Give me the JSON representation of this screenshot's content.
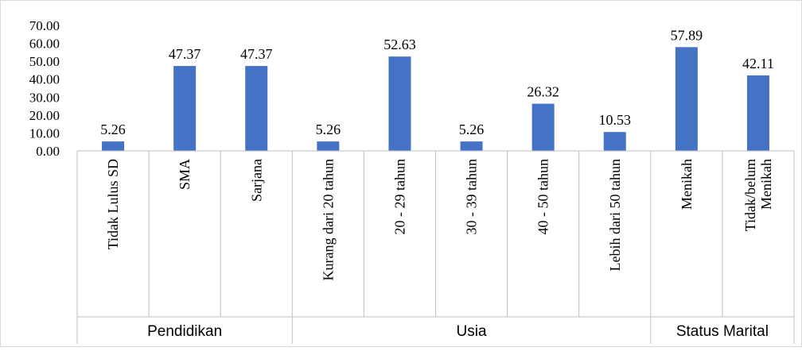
{
  "chart_data": {
    "type": "bar",
    "title": "",
    "xlabel": "",
    "ylabel": "",
    "ylim": [
      0,
      70
    ],
    "y_ticks": [
      "70.00",
      "60.00",
      "50.00",
      "40.00",
      "30.00",
      "20.00",
      "10.00",
      "0.00"
    ],
    "grid": false,
    "legend": "none",
    "bar_color": "#4472C4",
    "categories": [
      "Tidak Lulus SD",
      "SMA",
      "Sarjana",
      "Kurang dari 20 tahun",
      "20 - 29 tahun",
      "30 - 39 tahun",
      "40 - 50 tahun",
      "Lebih dari 50 tahun",
      "Menikah",
      "Tidak/belum Menikah"
    ],
    "values": [
      5.26,
      47.37,
      47.37,
      5.26,
      52.63,
      5.26,
      26.32,
      10.53,
      57.89,
      42.11
    ],
    "data_labels": [
      "5.26",
      "47.37",
      "47.37",
      "5.26",
      "52.63",
      "5.26",
      "26.32",
      "10.53",
      "57.89",
      "42.11"
    ],
    "groups": [
      {
        "label": "Pendidikan",
        "count": 3
      },
      {
        "label": "Usia",
        "count": 5
      },
      {
        "label": "Status Marital",
        "count": 2
      }
    ]
  }
}
